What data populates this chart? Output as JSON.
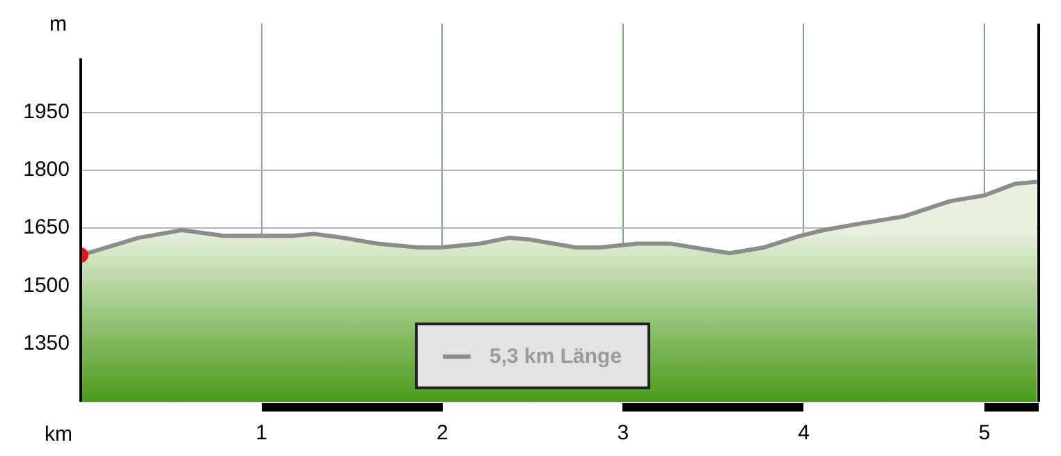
{
  "chart_data": {
    "type": "area",
    "xlabel": "km",
    "ylabel": "m",
    "x": [
      0,
      0.32,
      0.56,
      0.79,
      1.0,
      1.17,
      1.29,
      1.45,
      1.64,
      1.87,
      1.99,
      2.21,
      2.37,
      2.49,
      2.74,
      2.87,
      3.08,
      3.26,
      3.59,
      3.78,
      3.98,
      4.11,
      4.29,
      4.55,
      4.81,
      5.0,
      5.17,
      5.29
    ],
    "series": [
      {
        "name": "5,3 km Länge",
        "color": "#8c8c8c",
        "values": [
          1580,
          1625,
          1645,
          1630,
          1630,
          1630,
          1635,
          1625,
          1610,
          1600,
          1600,
          1610,
          1625,
          1620,
          1600,
          1600,
          1610,
          1610,
          1585,
          1600,
          1630,
          1645,
          1660,
          1680,
          1720,
          1735,
          1765,
          1770
        ]
      },
      {
        "type": "scatter",
        "x": [
          0
        ],
        "color": "#e8141b",
        "values": [
          1580
        ]
      }
    ],
    "xlim": [
      0,
      5.3
    ],
    "xticks": [
      1,
      2,
      3,
      4,
      5
    ],
    "ylim": [
      1200,
      2180
    ],
    "yticks": [
      1350,
      1500,
      1650,
      1800,
      1950
    ],
    "grid": true,
    "legend": "bottom"
  }
}
